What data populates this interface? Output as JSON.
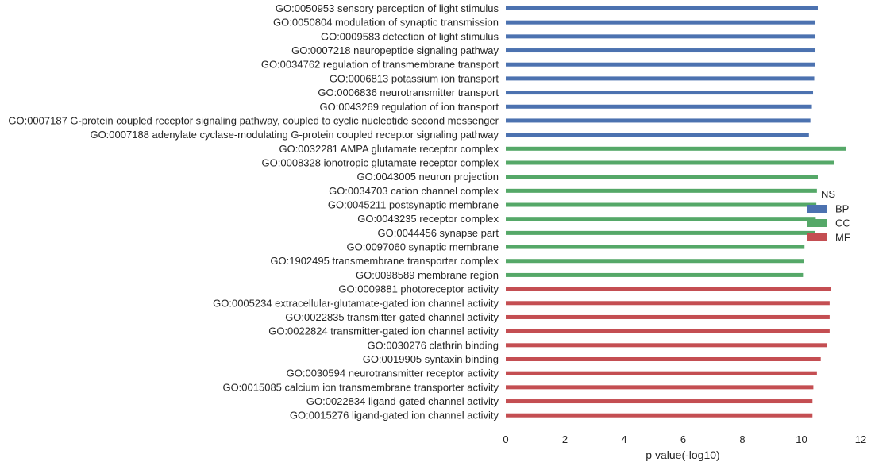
{
  "chart_data": {
    "type": "bar",
    "orientation": "horizontal",
    "xlabel": "p value(-log10)",
    "xlim": [
      0,
      12
    ],
    "x_ticks": [
      "0",
      "2",
      "4",
      "6",
      "8",
      "10",
      "12"
    ],
    "grid": false,
    "legend": {
      "title": "NS",
      "placement": "right",
      "entries": [
        {
          "name": "BP",
          "color": "#4c72b0"
        },
        {
          "name": "CC",
          "color": "#55a868"
        },
        {
          "name": "MF",
          "color": "#c44e52"
        }
      ]
    },
    "categories": [
      {
        "label": "GO:0050953 sensory perception of light stimulus",
        "value": 10.55,
        "group": "BP"
      },
      {
        "label": "GO:0050804 modulation of synaptic transmission",
        "value": 10.47,
        "group": "BP"
      },
      {
        "label": "GO:0009583 detection of light stimulus",
        "value": 10.47,
        "group": "BP"
      },
      {
        "label": "GO:0007218 neuropeptide signaling pathway",
        "value": 10.47,
        "group": "BP"
      },
      {
        "label": "GO:0034762 regulation of transmembrane transport",
        "value": 10.45,
        "group": "BP"
      },
      {
        "label": "GO:0006813 potassium ion transport",
        "value": 10.43,
        "group": "BP"
      },
      {
        "label": "GO:0006836 neurotransmitter transport",
        "value": 10.39,
        "group": "BP"
      },
      {
        "label": "GO:0043269 regulation of ion transport",
        "value": 10.35,
        "group": "BP"
      },
      {
        "label": "GO:0007187 G-protein coupled receptor signaling pathway, coupled to cyclic nucleotide second messenger",
        "value": 10.3,
        "group": "BP"
      },
      {
        "label": "GO:0007188 adenylate cyclase-modulating G-protein coupled receptor signaling pathway",
        "value": 10.25,
        "group": "BP"
      },
      {
        "label": "GO:0032281 AMPA glutamate receptor complex",
        "value": 11.5,
        "group": "CC"
      },
      {
        "label": "GO:0008328 ionotropic glutamate receptor complex",
        "value": 11.1,
        "group": "CC"
      },
      {
        "label": "GO:0043005 neuron projection",
        "value": 10.55,
        "group": "CC"
      },
      {
        "label": "GO:0034703 cation channel complex",
        "value": 10.52,
        "group": "CC"
      },
      {
        "label": "GO:0045211 postsynaptic membrane",
        "value": 10.5,
        "group": "CC"
      },
      {
        "label": "GO:0043235 receptor complex",
        "value": 10.48,
        "group": "CC"
      },
      {
        "label": "GO:0044456 synapse part",
        "value": 10.46,
        "group": "CC"
      },
      {
        "label": "GO:0097060 synaptic membrane",
        "value": 10.1,
        "group": "CC"
      },
      {
        "label": "GO:1902495 transmembrane transporter complex",
        "value": 10.08,
        "group": "CC"
      },
      {
        "label": "GO:0098589 membrane region",
        "value": 10.05,
        "group": "CC"
      },
      {
        "label": "GO:0009881 photoreceptor activity",
        "value": 11.0,
        "group": "MF"
      },
      {
        "label": "GO:0005234 extracellular-glutamate-gated ion channel activity",
        "value": 10.95,
        "group": "MF"
      },
      {
        "label": "GO:0022835 transmitter-gated channel activity",
        "value": 10.95,
        "group": "MF"
      },
      {
        "label": "GO:0022824 transmitter-gated ion channel activity",
        "value": 10.95,
        "group": "MF"
      },
      {
        "label": "GO:0030276 clathrin binding",
        "value": 10.85,
        "group": "MF"
      },
      {
        "label": "GO:0019905 syntaxin binding",
        "value": 10.65,
        "group": "MF"
      },
      {
        "label": "GO:0030594 neurotransmitter receptor activity",
        "value": 10.52,
        "group": "MF"
      },
      {
        "label": "GO:0015085 calcium ion transmembrane transporter activity",
        "value": 10.4,
        "group": "MF"
      },
      {
        "label": "GO:0022834 ligand-gated channel activity",
        "value": 10.37,
        "group": "MF"
      },
      {
        "label": "GO:0015276 ligand-gated ion channel activity",
        "value": 10.37,
        "group": "MF"
      }
    ]
  }
}
